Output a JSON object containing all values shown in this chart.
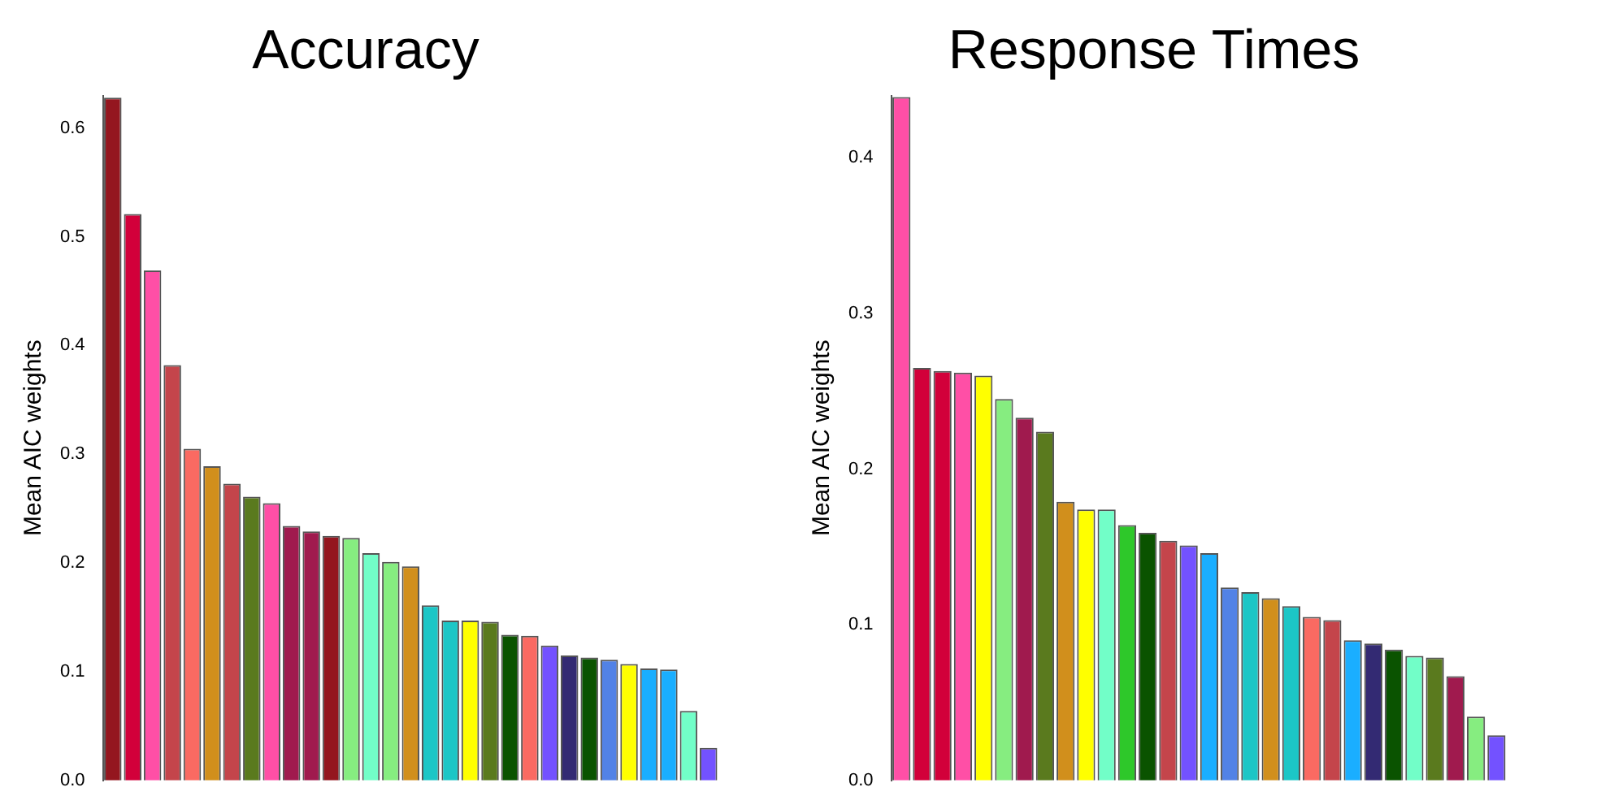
{
  "chart_data": [
    {
      "type": "bar",
      "title": "Accuracy",
      "ylabel": "Mean AIC weights",
      "categories": [
        null,
        null,
        null,
        null,
        null,
        null,
        null,
        null,
        null,
        null,
        null,
        null,
        null,
        null,
        null,
        null,
        null,
        null,
        null,
        null,
        null,
        null,
        null,
        null,
        null,
        null,
        null,
        null,
        null,
        null,
        null
      ],
      "values": [
        0.628,
        0.521,
        0.469,
        0.382,
        0.305,
        0.289,
        0.273,
        0.261,
        0.255,
        0.234,
        0.229,
        0.225,
        0.223,
        0.209,
        0.201,
        0.197,
        0.161,
        0.147,
        0.147,
        0.146,
        0.134,
        0.133,
        0.124,
        0.115,
        0.113,
        0.111,
        0.107,
        0.103,
        0.102,
        0.064,
        0.03
      ],
      "colors": [
        "#94161f",
        "#d2003a",
        "#ff4fa6",
        "#c4454b",
        "#fa6a62",
        "#d18f1c",
        "#c4454b",
        "#5a7a1e",
        "#ff4fa6",
        "#a01a4e",
        "#a01a4e",
        "#94161f",
        "#86ed80",
        "#72fec8",
        "#86ed80",
        "#d18f1c",
        "#1cc6c6",
        "#1cc6c6",
        "#ffff00",
        "#5a7a1e",
        "#0a5300",
        "#fa6a62",
        "#7352ff",
        "#332a73",
        "#0a5300",
        "#5282e6",
        "#ffff00",
        "#1aaeff",
        "#1aaeff",
        "#72fec8",
        "#7352ff"
      ],
      "ylim": [
        0,
        0.63
      ],
      "yticks": [
        {
          "value": 0,
          "label": "0.0"
        },
        0.1,
        0.2,
        0.3,
        0.4,
        0.5,
        0.6
      ],
      "tick_labels": "y",
      "grid": false,
      "legend": false
    },
    {
      "type": "bar",
      "title": "Response Times",
      "ylabel": "Mean AIC weights",
      "categories": [
        null,
        null,
        null,
        null,
        null,
        null,
        null,
        null,
        null,
        null,
        null,
        null,
        null,
        null,
        null,
        null,
        null,
        null,
        null,
        null,
        null,
        null,
        null,
        null,
        null,
        null,
        null,
        null,
        null,
        null
      ],
      "values": [
        0.439,
        0.265,
        0.263,
        0.262,
        0.26,
        0.245,
        0.233,
        0.224,
        0.179,
        0.174,
        0.174,
        0.164,
        0.159,
        0.154,
        0.151,
        0.146,
        0.124,
        0.121,
        0.117,
        0.112,
        0.105,
        0.103,
        0.09,
        0.088,
        0.084,
        0.08,
        0.079,
        0.067,
        0.041,
        0.029
      ],
      "colors": [
        "#ff4fa6",
        "#d2003a",
        "#d2003a",
        "#ff4fa6",
        "#ffff00",
        "#86ed80",
        "#a01a4e",
        "#5a7a1e",
        "#d18f1c",
        "#ffff00",
        "#72fec8",
        "#2ec82a",
        "#0a5300",
        "#c4454b",
        "#7352ff",
        "#1aaeff",
        "#5282e6",
        "#1cc6c6",
        "#d18f1c",
        "#1cc6c6",
        "#fa6a62",
        "#c4454b",
        "#1aaeff",
        "#332a73",
        "#0a5300",
        "#72fec8",
        "#5a7a1e",
        "#a01a4e",
        "#86ed80",
        "#7352ff"
      ],
      "ylim": [
        0,
        0.44
      ],
      "yticks": [
        {
          "value": 0,
          "label": "0.0"
        },
        0.1,
        0.2,
        0.3,
        0.4
      ],
      "tick_labels": "y",
      "grid": false,
      "legend": false
    }
  ]
}
